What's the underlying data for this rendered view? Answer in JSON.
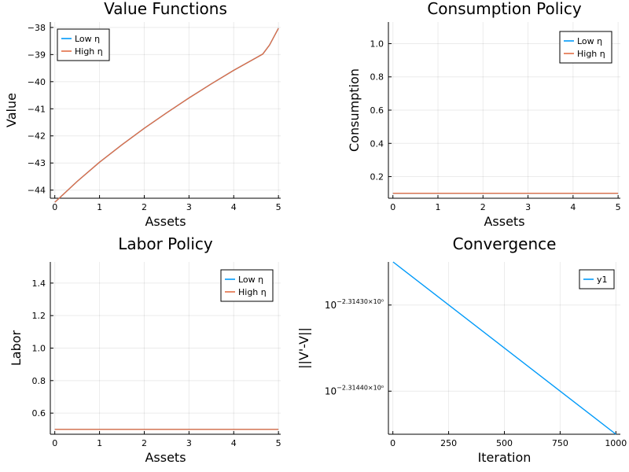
{
  "chart_data": [
    {
      "type": "line",
      "title": "Value Functions",
      "xlabel": "Assets",
      "ylabel": "Value",
      "xlim": [
        -0.1,
        5.05
      ],
      "ylim": [
        -44.3,
        -37.8
      ],
      "xticks": [
        0,
        1,
        2,
        3,
        4,
        5
      ],
      "xtick_labels": [
        "0",
        "1",
        "2",
        "3",
        "4",
        "5"
      ],
      "yticks": [
        -44,
        -43,
        -42,
        -41,
        -40,
        -39,
        -38
      ],
      "ytick_labels": [
        "−44",
        "−43",
        "−42",
        "−41",
        "−40",
        "−39",
        "−38"
      ],
      "legend_position": "top-left",
      "series": [
        {
          "name": "Low η",
          "color": "#009af9",
          "x": [
            0,
            0.5,
            1,
            1.5,
            2,
            2.5,
            3,
            3.5,
            4,
            4.5,
            4.65,
            4.8,
            5
          ],
          "y": [
            -44.45,
            -43.68,
            -42.97,
            -42.33,
            -41.72,
            -41.15,
            -40.6,
            -40.08,
            -39.58,
            -39.12,
            -38.98,
            -38.65,
            -38.03
          ]
        },
        {
          "name": "High η",
          "color": "#e26f46",
          "x": [
            0,
            0.5,
            1,
            1.5,
            2,
            2.5,
            3,
            3.5,
            4,
            4.5,
            4.65,
            4.8,
            5
          ],
          "y": [
            -44.45,
            -43.68,
            -42.97,
            -42.33,
            -41.72,
            -41.15,
            -40.6,
            -40.08,
            -39.58,
            -39.12,
            -38.98,
            -38.65,
            -38.03
          ]
        }
      ]
    },
    {
      "type": "line",
      "title": "Consumption Policy",
      "xlabel": "Assets",
      "ylabel": "Consumption",
      "xlim": [
        -0.1,
        5.05
      ],
      "ylim": [
        0.07,
        1.13
      ],
      "xticks": [
        0,
        1,
        2,
        3,
        4,
        5
      ],
      "xtick_labels": [
        "0",
        "1",
        "2",
        "3",
        "4",
        "5"
      ],
      "yticks": [
        0.2,
        0.4,
        0.6,
        0.8,
        1.0
      ],
      "ytick_labels": [
        "0.2",
        "0.4",
        "0.6",
        "0.8",
        "1.0"
      ],
      "legend_position": "top-right",
      "series": [
        {
          "name": "Low η",
          "color": "#009af9",
          "x": [
            0,
            5
          ],
          "y": [
            0.1,
            0.1
          ]
        },
        {
          "name": "High η",
          "color": "#e26f46",
          "x": [
            0,
            5
          ],
          "y": [
            0.1,
            0.1
          ]
        }
      ]
    },
    {
      "type": "line",
      "title": "Labor Policy",
      "xlabel": "Assets",
      "ylabel": "Labor",
      "xlim": [
        -0.1,
        5.05
      ],
      "ylim": [
        0.47,
        1.53
      ],
      "xticks": [
        0,
        1,
        2,
        3,
        4,
        5
      ],
      "xtick_labels": [
        "0",
        "1",
        "2",
        "3",
        "4",
        "5"
      ],
      "yticks": [
        0.6,
        0.8,
        1.0,
        1.2,
        1.4
      ],
      "ytick_labels": [
        "0.6",
        "0.8",
        "1.0",
        "1.2",
        "1.4"
      ],
      "legend_position": "top-right",
      "series": [
        {
          "name": "Low η",
          "color": "#009af9",
          "x": [
            0,
            5
          ],
          "y": [
            0.5,
            0.5
          ]
        },
        {
          "name": "High η",
          "color": "#e26f46",
          "x": [
            0,
            5
          ],
          "y": [
            0.5,
            0.5
          ]
        }
      ]
    },
    {
      "type": "line",
      "title": "Convergence",
      "xlabel": "Iteration",
      "ylabel": "||V'-V||",
      "xlim": [
        -20,
        1020
      ],
      "ylim": [
        -2.31445,
        -2.31425
      ],
      "yscale": "log",
      "xticks": [
        0,
        250,
        500,
        750,
        1000
      ],
      "xtick_labels": [
        "0",
        "250",
        "500",
        "750",
        "1000"
      ],
      "yticks": [
        -2.3144,
        -2.3143
      ],
      "ytick_labels": [
        {
          "base": "10",
          "exp": "−2.31440×10⁰"
        },
        {
          "base": "10",
          "exp": "−2.31430×10⁰"
        }
      ],
      "legend_position": "top-right",
      "series": [
        {
          "name": "y1",
          "color": "#009af9",
          "x": [
            1,
            1000
          ],
          "y": [
            -2.31425,
            -2.31445
          ]
        }
      ]
    }
  ]
}
